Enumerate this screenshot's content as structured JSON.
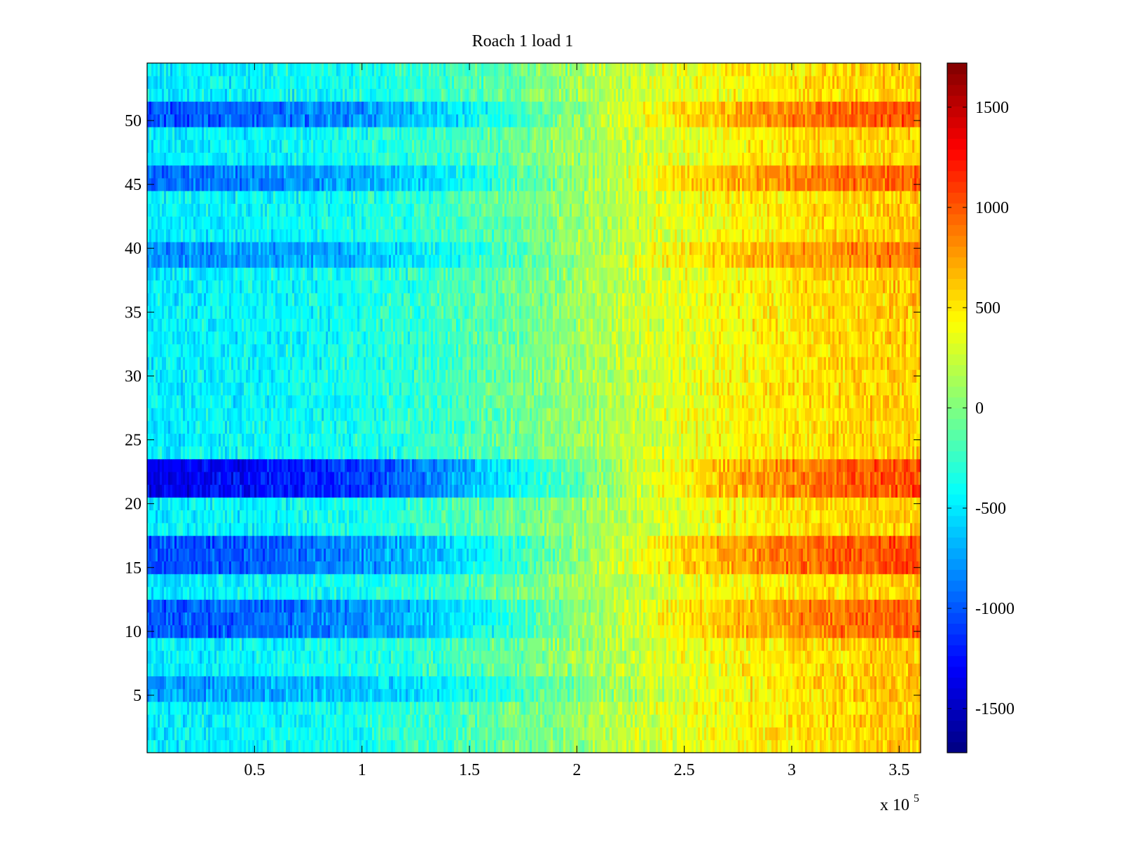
{
  "chart_data": {
    "type": "heatmap",
    "title": "Roach 1 load 1",
    "xlabel": "",
    "ylabel": "",
    "x_multiplier_label": {
      "base": "x 10",
      "exponent": "5"
    },
    "xlim": [
      0,
      3.6
    ],
    "ylim": [
      0.5,
      54.5
    ],
    "x_ticks": [
      0.5,
      1,
      1.5,
      2,
      2.5,
      3,
      3.5
    ],
    "x_tick_labels": [
      "0.5",
      "1",
      "1.5",
      "2",
      "2.5",
      "3",
      "3.5"
    ],
    "y_ticks": [
      5,
      10,
      15,
      20,
      25,
      30,
      35,
      40,
      45,
      50
    ],
    "y_tick_labels": [
      "5",
      "10",
      "15",
      "20",
      "25",
      "30",
      "35",
      "40",
      "45",
      "50"
    ],
    "rows": 54,
    "colormap": "jet",
    "colorbar": {
      "clim": [
        -1720,
        1720
      ],
      "ticks": [
        -1500,
        -1000,
        -500,
        0,
        500,
        1000,
        1500
      ],
      "tick_labels": [
        "-1500",
        "-1000",
        "-500",
        "0",
        "500",
        "1000",
        "1500"
      ]
    },
    "row_profile": {
      "description_units": "approximate mean value per band of rows",
      "bands": [
        {
          "rows": [
            50,
            51
          ],
          "start": -1050,
          "end": 1100
        },
        {
          "rows": [
            45,
            46
          ],
          "start": -950,
          "end": 1050
        },
        {
          "rows": [
            39,
            40
          ],
          "start": -850,
          "end": 950
        },
        {
          "rows": [
            21,
            23
          ],
          "start": -1400,
          "end": 1150
        },
        {
          "rows": [
            15,
            17
          ],
          "start": -1100,
          "end": 1150
        },
        {
          "rows": [
            10,
            12
          ],
          "start": -1050,
          "end": 1050
        },
        {
          "rows": [
            5,
            6
          ],
          "start": -800,
          "end": 700
        }
      ],
      "default_start": -500,
      "default_end": 650,
      "noise": 260
    }
  }
}
